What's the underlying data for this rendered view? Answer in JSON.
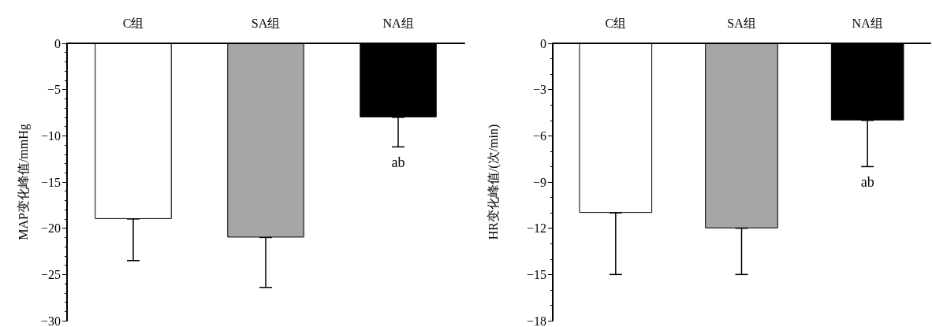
{
  "chart_data": [
    {
      "type": "bar",
      "categories": [
        "C组",
        "SA组",
        "NA组"
      ],
      "values": [
        -19,
        -21,
        -8
      ],
      "colors": [
        "#ffffff",
        "#a6a6a6",
        "#000000"
      ],
      "errors": [
        [
          -23.5,
          -19
        ],
        [
          -26.4,
          -21
        ],
        [
          -11.2,
          -8
        ]
      ],
      "ylabel": "MAP变化峰值/mmHg",
      "ylim": [
        -30,
        0
      ],
      "yticks": [
        -30,
        -25,
        -20,
        -15,
        -10,
        -5,
        0
      ],
      "annotations": [
        "ab"
      ],
      "grid": false
    },
    {
      "type": "bar",
      "categories": [
        "C组",
        "SA组",
        "NA组"
      ],
      "values": [
        -11,
        -12,
        -5
      ],
      "colors": [
        "#ffffff",
        "#a6a6a6",
        "#000000"
      ],
      "errors": [
        [
          -15,
          -11
        ],
        [
          -15,
          -12
        ],
        [
          -8,
          -5
        ]
      ],
      "ylabel": "HR变化峰值/(次/min)",
      "ylim": [
        -18,
        0
      ],
      "yticks": [
        -18,
        -15,
        -12,
        -9,
        -6,
        -3,
        0
      ],
      "annotations": [
        "ab"
      ],
      "grid": false
    }
  ]
}
